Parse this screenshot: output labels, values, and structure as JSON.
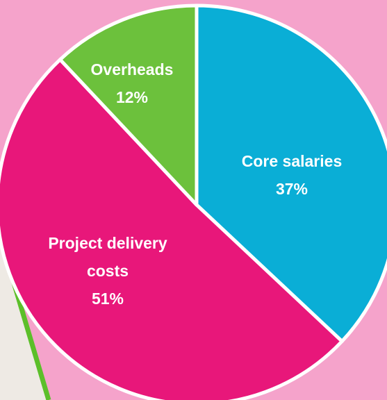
{
  "chart_data": {
    "type": "pie",
    "categories": [
      "Core salaries",
      "Project delivery costs",
      "Overheads"
    ],
    "values": [
      37,
      51,
      12
    ],
    "value_labels": [
      "37%",
      "51%",
      "12%"
    ],
    "colors": [
      "#0aaed6",
      "#e8177a",
      "#6cc13c"
    ]
  }
}
